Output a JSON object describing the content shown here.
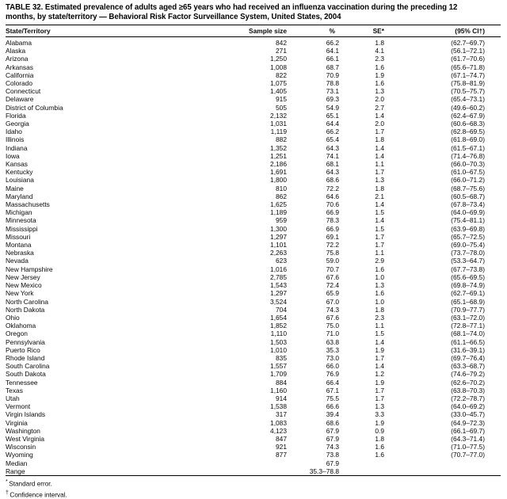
{
  "title_lines": [
    "TABLE 32. Estimated prevalence of adults aged ≥65 years who had received an influenza vaccination during the preceding 12",
    "months, by state/territory — Behavioral Risk Factor Surveillance System, United States, 2004"
  ],
  "table": {
    "columns": [
      "State/Territory",
      "Sample size",
      "%",
      "SE*",
      "(95% CI†)"
    ],
    "rows": [
      {
        "state": "Alabama",
        "n": "842",
        "pct": "66.2",
        "se": "1.8",
        "ci": "(62.7–69.7)"
      },
      {
        "state": "Alaska",
        "n": "271",
        "pct": "64.1",
        "se": "4.1",
        "ci": "(56.1–72.1)"
      },
      {
        "state": "Arizona",
        "n": "1,250",
        "pct": "66.1",
        "se": "2.3",
        "ci": "(61.7–70.6)"
      },
      {
        "state": "Arkansas",
        "n": "1,008",
        "pct": "68.7",
        "se": "1.6",
        "ci": "(65.6–71.8)"
      },
      {
        "state": "California",
        "n": "822",
        "pct": "70.9",
        "se": "1.9",
        "ci": "(67.1–74.7)"
      },
      {
        "state": "Colorado",
        "n": "1,075",
        "pct": "78.8",
        "se": "1.6",
        "ci": "(75.8–81.9)"
      },
      {
        "state": "Connecticut",
        "n": "1,405",
        "pct": "73.1",
        "se": "1.3",
        "ci": "(70.5–75.7)"
      },
      {
        "state": "Delaware",
        "n": "915",
        "pct": "69.3",
        "se": "2.0",
        "ci": "(65.4–73.1)"
      },
      {
        "state": "District of Columbia",
        "n": "505",
        "pct": "54.9",
        "se": "2.7",
        "ci": "(49.6–60.2)"
      },
      {
        "state": "Florida",
        "n": "2,132",
        "pct": "65.1",
        "se": "1.4",
        "ci": "(62.4–67.9)"
      },
      {
        "state": "Georgia",
        "n": "1,031",
        "pct": "64.4",
        "se": "2.0",
        "ci": "(60.6–68.3)"
      },
      {
        "state": "Idaho",
        "n": "1,119",
        "pct": "66.2",
        "se": "1.7",
        "ci": "(62.8–69.5)"
      },
      {
        "state": "Illinois",
        "n": "882",
        "pct": "65.4",
        "se": "1.8",
        "ci": "(61.8–69.0)"
      },
      {
        "state": "Indiana",
        "n": "1,352",
        "pct": "64.3",
        "se": "1.4",
        "ci": "(61.5–67.1)"
      },
      {
        "state": "Iowa",
        "n": "1,251",
        "pct": "74.1",
        "se": "1.4",
        "ci": "(71.4–76.8)"
      },
      {
        "state": "Kansas",
        "n": "2,186",
        "pct": "68.1",
        "se": "1.1",
        "ci": "(66.0–70.3)"
      },
      {
        "state": "Kentucky",
        "n": "1,691",
        "pct": "64.3",
        "se": "1.7",
        "ci": "(61.0–67.5)"
      },
      {
        "state": "Louisiana",
        "n": "1,800",
        "pct": "68.6",
        "se": "1.3",
        "ci": "(66.0–71.2)"
      },
      {
        "state": "Maine",
        "n": "810",
        "pct": "72.2",
        "se": "1.8",
        "ci": "(68.7–75.6)"
      },
      {
        "state": "Maryland",
        "n": "862",
        "pct": "64.6",
        "se": "2.1",
        "ci": "(60.5–68.7)"
      },
      {
        "state": "Massachusetts",
        "n": "1,625",
        "pct": "70.6",
        "se": "1.4",
        "ci": "(67.8–73.4)"
      },
      {
        "state": "Michigan",
        "n": "1,189",
        "pct": "66.9",
        "se": "1.5",
        "ci": "(64.0–69.9)"
      },
      {
        "state": "Minnesota",
        "n": "959",
        "pct": "78.3",
        "se": "1.4",
        "ci": "(75.4–81.1)"
      },
      {
        "state": "Mississippi",
        "n": "1,300",
        "pct": "66.9",
        "se": "1.5",
        "ci": "(63.9–69.8)"
      },
      {
        "state": "Missouri",
        "n": "1,297",
        "pct": "69.1",
        "se": "1.7",
        "ci": "(65.7–72.5)"
      },
      {
        "state": "Montana",
        "n": "1,101",
        "pct": "72.2",
        "se": "1.7",
        "ci": "(69.0–75.4)"
      },
      {
        "state": "Nebraska",
        "n": "2,263",
        "pct": "75.8",
        "se": "1.1",
        "ci": "(73.7–78.0)"
      },
      {
        "state": "Nevada",
        "n": "623",
        "pct": "59.0",
        "se": "2.9",
        "ci": "(53.3–64.7)"
      },
      {
        "state": "New Hampshire",
        "n": "1,016",
        "pct": "70.7",
        "se": "1.6",
        "ci": "(67.7–73.8)"
      },
      {
        "state": "New Jersey",
        "n": "2,785",
        "pct": "67.6",
        "se": "1.0",
        "ci": "(65.6–69.5)"
      },
      {
        "state": "New Mexico",
        "n": "1,543",
        "pct": "72.4",
        "se": "1.3",
        "ci": "(69.8–74.9)"
      },
      {
        "state": "New York",
        "n": "1,297",
        "pct": "65.9",
        "se": "1.6",
        "ci": "(62.7–69.1)"
      },
      {
        "state": "North Carolina",
        "n": "3,524",
        "pct": "67.0",
        "se": "1.0",
        "ci": "(65.1–68.9)"
      },
      {
        "state": "North Dakota",
        "n": "704",
        "pct": "74.3",
        "se": "1.8",
        "ci": "(70.9–77.7)"
      },
      {
        "state": "Ohio",
        "n": "1,654",
        "pct": "67.6",
        "se": "2.3",
        "ci": "(63.1–72.0)"
      },
      {
        "state": "Oklahoma",
        "n": "1,852",
        "pct": "75.0",
        "se": "1.1",
        "ci": "(72.8–77.1)"
      },
      {
        "state": "Oregon",
        "n": "1,110",
        "pct": "71.0",
        "se": "1.5",
        "ci": "(68.1–74.0)"
      },
      {
        "state": "Pennsylvania",
        "n": "1,503",
        "pct": "63.8",
        "se": "1.4",
        "ci": "(61.1–66.5)"
      },
      {
        "state": "Puerto Rico",
        "n": "1,010",
        "pct": "35.3",
        "se": "1.9",
        "ci": "(31.6–39.1)"
      },
      {
        "state": "Rhode Island",
        "n": "835",
        "pct": "73.0",
        "se": "1.7",
        "ci": "(69.7–76.4)"
      },
      {
        "state": "South Carolina",
        "n": "1,557",
        "pct": "66.0",
        "se": "1.4",
        "ci": "(63.3–68.7)"
      },
      {
        "state": "South Dakota",
        "n": "1,709",
        "pct": "76.9",
        "se": "1.2",
        "ci": "(74.6–79.2)"
      },
      {
        "state": "Tennessee",
        "n": "884",
        "pct": "66.4",
        "se": "1.9",
        "ci": "(62.6–70.2)"
      },
      {
        "state": "Texas",
        "n": "1,160",
        "pct": "67.1",
        "se": "1.7",
        "ci": "(63.8–70.3)"
      },
      {
        "state": "Utah",
        "n": "914",
        "pct": "75.5",
        "se": "1.7",
        "ci": "(72.2–78.7)"
      },
      {
        "state": "Vermont",
        "n": "1,538",
        "pct": "66.6",
        "se": "1.3",
        "ci": "(64.0–69.2)"
      },
      {
        "state": "Virgin Islands",
        "n": "317",
        "pct": "39.4",
        "se": "3.3",
        "ci": "(33.0–45.7)"
      },
      {
        "state": "Virginia",
        "n": "1,083",
        "pct": "68.6",
        "se": "1.9",
        "ci": "(64.9–72.3)"
      },
      {
        "state": "Washington",
        "n": "4,123",
        "pct": "67.9",
        "se": "0.9",
        "ci": "(66.1–69.7)"
      },
      {
        "state": "West Virginia",
        "n": "847",
        "pct": "67.9",
        "se": "1.8",
        "ci": "(64.3–71.4)"
      },
      {
        "state": "Wisconsin",
        "n": "921",
        "pct": "74.3",
        "se": "1.6",
        "ci": "(71.0–77.5)"
      },
      {
        "state": "Wyoming",
        "n": "877",
        "pct": "73.8",
        "se": "1.6",
        "ci": "(70.7–77.0)"
      },
      {
        "state": "Median",
        "n": "",
        "pct": "67.9",
        "se": "",
        "ci": ""
      },
      {
        "state": "Range",
        "n": "",
        "pct": "35.3–78.8",
        "se": "",
        "ci": ""
      }
    ]
  },
  "footnotes": [
    {
      "marker": "*",
      "text": "Standard error."
    },
    {
      "marker": "†",
      "text": "Confidence interval."
    }
  ]
}
